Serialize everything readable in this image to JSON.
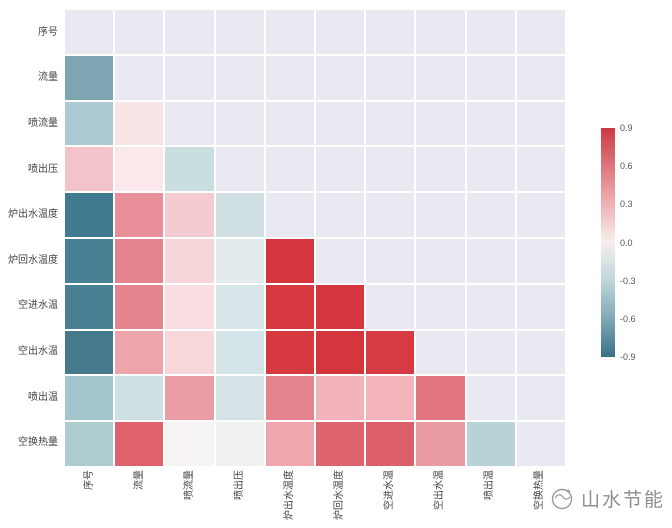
{
  "chart_data": {
    "type": "heatmap",
    "subtype": "correlation-matrix-lower-triangle",
    "title": "",
    "variables": [
      "序号",
      "流量",
      "喷流量",
      "喷出压",
      "炉出水温度",
      "炉回水温度",
      "空进水温",
      "空出水温",
      "喷出温",
      "空换热量"
    ],
    "x_categories": [
      "序号",
      "流量",
      "喷流量",
      "喷出压",
      "炉出水温度",
      "炉回水温度",
      "空进水温",
      "空出水温",
      "喷出温",
      "空换热量"
    ],
    "y_categories": [
      "序号",
      "流量",
      "喷流量",
      "喷出压",
      "炉出水温度",
      "炉回水温度",
      "空进水温",
      "空出水温",
      "喷出温",
      "空换热量"
    ],
    "mask": "diagonal-and-upper-triangle-hidden",
    "grid": "white-gridlines-on-lavender-background",
    "background_cell_color": "#e9e9f1",
    "cells": [
      {
        "row": 1,
        "col": 0,
        "value": -0.5,
        "color": "#7da5b2"
      },
      {
        "row": 2,
        "col": 0,
        "value": -0.28,
        "color": "#abc9d1"
      },
      {
        "row": 2,
        "col": 1,
        "value": 0.08,
        "color": "#f9e4e7"
      },
      {
        "row": 3,
        "col": 0,
        "value": 0.25,
        "color": "#f2c3c8"
      },
      {
        "row": 3,
        "col": 1,
        "value": 0.07,
        "color": "#fbe8ea"
      },
      {
        "row": 3,
        "col": 2,
        "value": -0.18,
        "color": "#c9dedf"
      },
      {
        "row": 4,
        "col": 0,
        "value": -0.75,
        "color": "#3f7a8f"
      },
      {
        "row": 4,
        "col": 1,
        "value": 0.45,
        "color": "#e88f99"
      },
      {
        "row": 4,
        "col": 2,
        "value": 0.22,
        "color": "#f4cbd1"
      },
      {
        "row": 4,
        "col": 3,
        "value": -0.16,
        "color": "#d0dfe1"
      },
      {
        "row": 5,
        "col": 0,
        "value": -0.71,
        "color": "#477f93"
      },
      {
        "row": 5,
        "col": 1,
        "value": 0.52,
        "color": "#e4828d"
      },
      {
        "row": 5,
        "col": 2,
        "value": 0.17,
        "color": "#f7d6da"
      },
      {
        "row": 5,
        "col": 3,
        "value": -0.07,
        "color": "#e3ebee"
      },
      {
        "row": 5,
        "col": 4,
        "value": 0.95,
        "color": "#d5353e"
      },
      {
        "row": 6,
        "col": 0,
        "value": -0.7,
        "color": "#4a8094"
      },
      {
        "row": 6,
        "col": 1,
        "value": 0.5,
        "color": "#e5868f"
      },
      {
        "row": 6,
        "col": 2,
        "value": 0.13,
        "color": "#f9dee1"
      },
      {
        "row": 6,
        "col": 3,
        "value": -0.12,
        "color": "#d8e6ea"
      },
      {
        "row": 6,
        "col": 4,
        "value": 0.93,
        "color": "#d6383f"
      },
      {
        "row": 6,
        "col": 5,
        "value": 0.96,
        "color": "#d5363e"
      },
      {
        "row": 7,
        "col": 0,
        "value": -0.73,
        "color": "#457a8d"
      },
      {
        "row": 7,
        "col": 1,
        "value": 0.37,
        "color": "#eda4ab"
      },
      {
        "row": 7,
        "col": 2,
        "value": 0.17,
        "color": "#f8d7db"
      },
      {
        "row": 7,
        "col": 3,
        "value": -0.13,
        "color": "#d5e4e8"
      },
      {
        "row": 7,
        "col": 4,
        "value": 0.92,
        "color": "#d6393f"
      },
      {
        "row": 7,
        "col": 5,
        "value": 0.94,
        "color": "#d5363e"
      },
      {
        "row": 7,
        "col": 6,
        "value": 0.95,
        "color": "#d63a42"
      },
      {
        "row": 8,
        "col": 0,
        "value": -0.3,
        "color": "#a2c4cb"
      },
      {
        "row": 8,
        "col": 1,
        "value": -0.15,
        "color": "#cfe0e3"
      },
      {
        "row": 8,
        "col": 2,
        "value": 0.4,
        "color": "#eb9da5"
      },
      {
        "row": 8,
        "col": 3,
        "value": -0.14,
        "color": "#d5e3e6"
      },
      {
        "row": 8,
        "col": 4,
        "value": 0.48,
        "color": "#e5848e"
      },
      {
        "row": 8,
        "col": 5,
        "value": 0.3,
        "color": "#f2b3ba"
      },
      {
        "row": 8,
        "col": 6,
        "value": 0.29,
        "color": "#f3b5bb"
      },
      {
        "row": 8,
        "col": 7,
        "value": 0.55,
        "color": "#e27680"
      },
      {
        "row": 9,
        "col": 0,
        "value": -0.27,
        "color": "#aecbd0"
      },
      {
        "row": 9,
        "col": 1,
        "value": 0.62,
        "color": "#e0606b"
      },
      {
        "row": 9,
        "col": 2,
        "value": 0.01,
        "color": "#f5f4f2"
      },
      {
        "row": 9,
        "col": 3,
        "value": -0.01,
        "color": "#f0f2f0"
      },
      {
        "row": 9,
        "col": 4,
        "value": 0.36,
        "color": "#efa6ad"
      },
      {
        "row": 9,
        "col": 5,
        "value": 0.6,
        "color": "#dd636d"
      },
      {
        "row": 9,
        "col": 6,
        "value": 0.62,
        "color": "#dc5f6a"
      },
      {
        "row": 9,
        "col": 7,
        "value": 0.42,
        "color": "#eb9ba4"
      },
      {
        "row": 9,
        "col": 8,
        "value": -0.22,
        "color": "#b8d2d8"
      }
    ],
    "colorbar": {
      "min": -0.9,
      "max": 0.9,
      "ticks": [
        "0.9",
        "0.6",
        "0.3",
        "0.0",
        "-0.3",
        "-0.6",
        "-0.9"
      ],
      "tick_values": [
        0.9,
        0.6,
        0.3,
        0.0,
        -0.3,
        -0.6,
        -0.9
      ],
      "gradient": [
        "#cd3941",
        "#dd767d",
        "#edb2b4",
        "#f5efed",
        "#bed6da",
        "#7ea8b5",
        "#3a7187"
      ],
      "position": "right"
    },
    "legend": "none"
  },
  "watermark": {
    "logo": "sketch-circle-logo",
    "text": "山水节能"
  }
}
